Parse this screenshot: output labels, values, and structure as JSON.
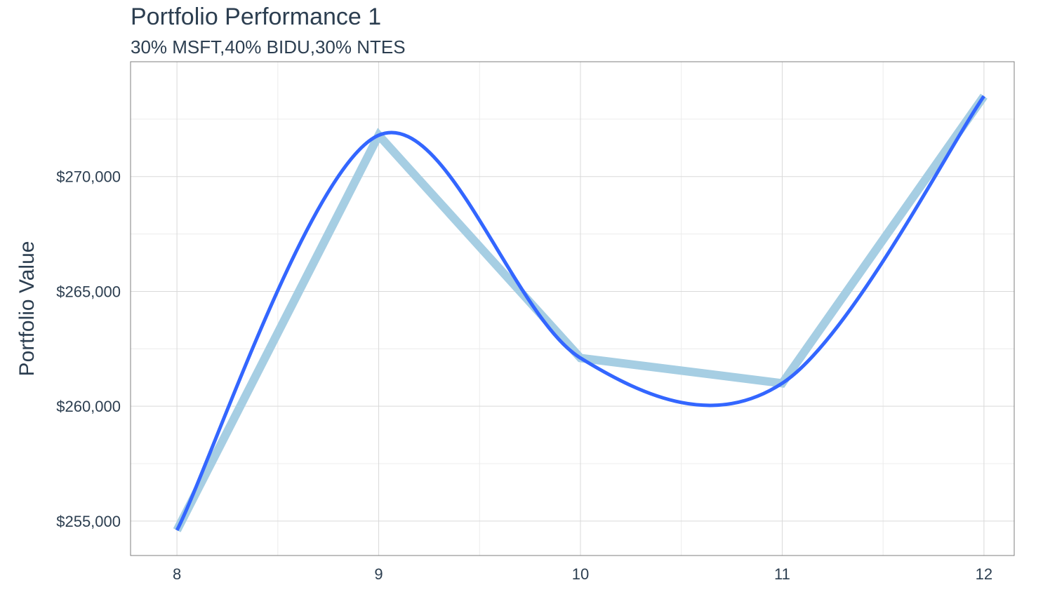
{
  "chart_data": {
    "type": "line",
    "title": "Portfolio Performance 1",
    "subtitle": "30% MSFT,40% BIDU,30% NTES",
    "xlabel": "",
    "ylabel": "Portfolio Value",
    "x": [
      8,
      9,
      10,
      11,
      12
    ],
    "series": [
      {
        "values": [
          254600,
          271800,
          262100,
          261000,
          273500
        ],
        "color": "#a6cee3",
        "style": "thick"
      },
      {
        "values": [
          254600,
          271800,
          262100,
          261000,
          273500
        ],
        "color": "#3366ff",
        "style": "smoothed"
      }
    ],
    "xlim": [
      7.77,
      12.15
    ],
    "ylim": [
      253500,
      275000
    ],
    "x_ticks": [
      8,
      9,
      10,
      11,
      12
    ],
    "x_tick_labels": [
      "8",
      "9",
      "10",
      "11",
      "12"
    ],
    "y_ticks": [
      255000,
      260000,
      265000,
      270000
    ],
    "y_tick_labels": [
      "$255,000",
      "$260,000",
      "$265,000",
      "$270,000"
    ],
    "grid": true
  }
}
